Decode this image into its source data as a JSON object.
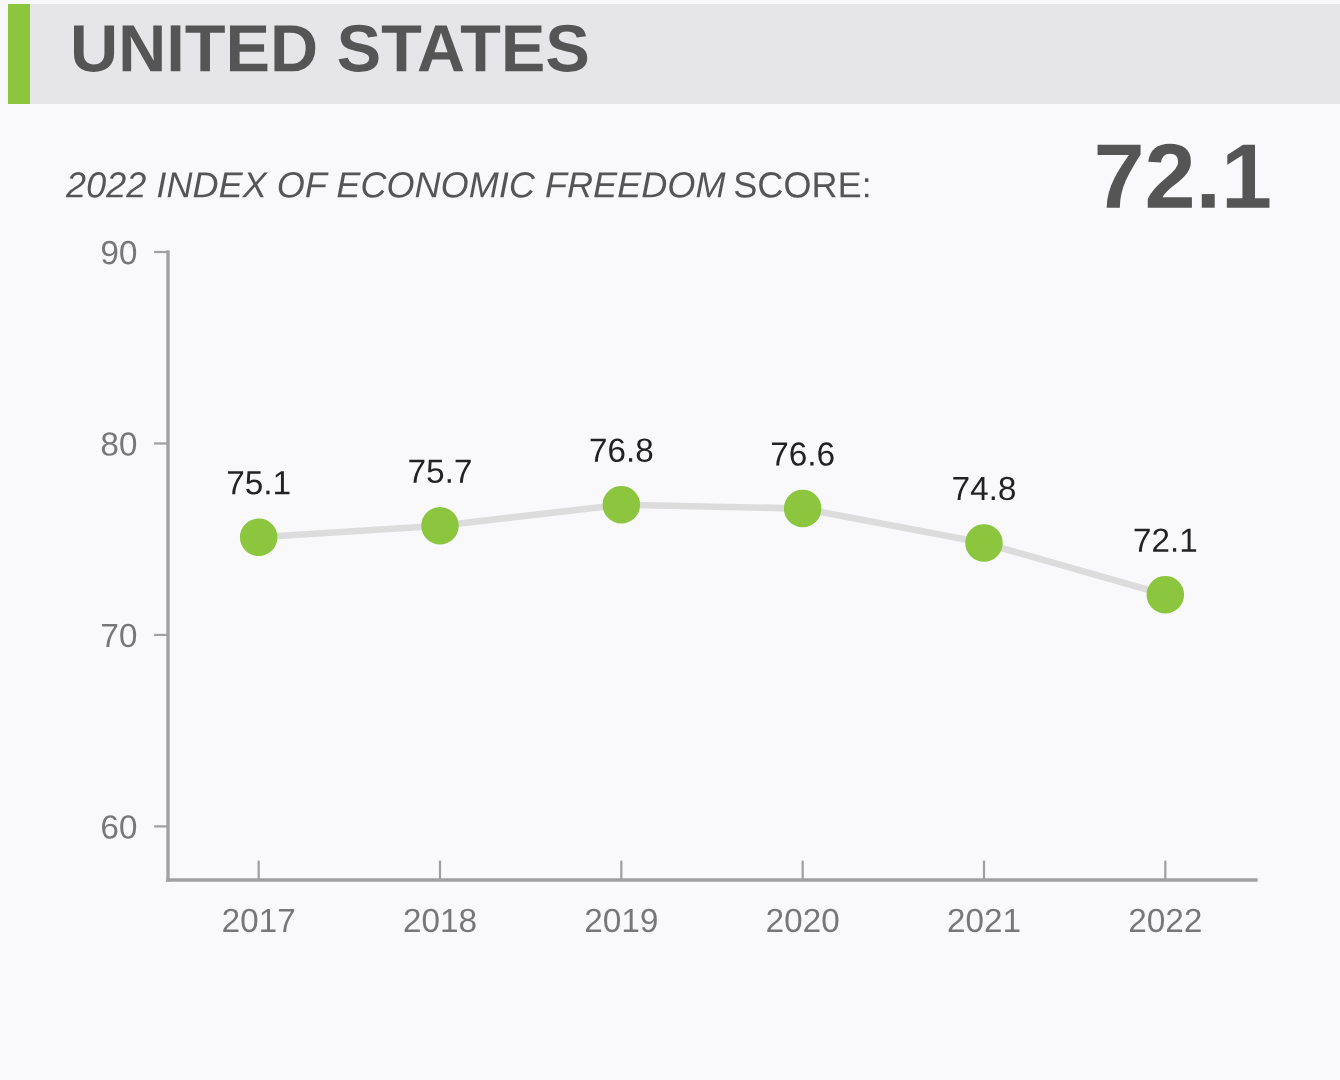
{
  "chart_data": {
    "type": "line",
    "title": "UNITED STATES",
    "subtitle": "2022 INDEX OF ECONOMIC FREEDOM SCORE:",
    "annotations": [
      "72.1"
    ],
    "categories": [
      "2017",
      "2018",
      "2019",
      "2020",
      "2021",
      "2022"
    ],
    "series": [
      {
        "color": "#dcdcdc",
        "colors": [
          "#8cc63f",
          "#8cc63f",
          "#8cc63f",
          "#8cc63f",
          "#8cc63f",
          "#8cc63f"
        ],
        "values": [
          75.1,
          75.7,
          76.8,
          76.6,
          74.8,
          72.1
        ]
      }
    ],
    "ylim": [
      57.2,
      90
    ],
    "yticks": [
      60,
      70,
      80,
      90
    ],
    "data_labels": true,
    "grid": false,
    "marker": "circle",
    "line_style": "solid"
  }
}
